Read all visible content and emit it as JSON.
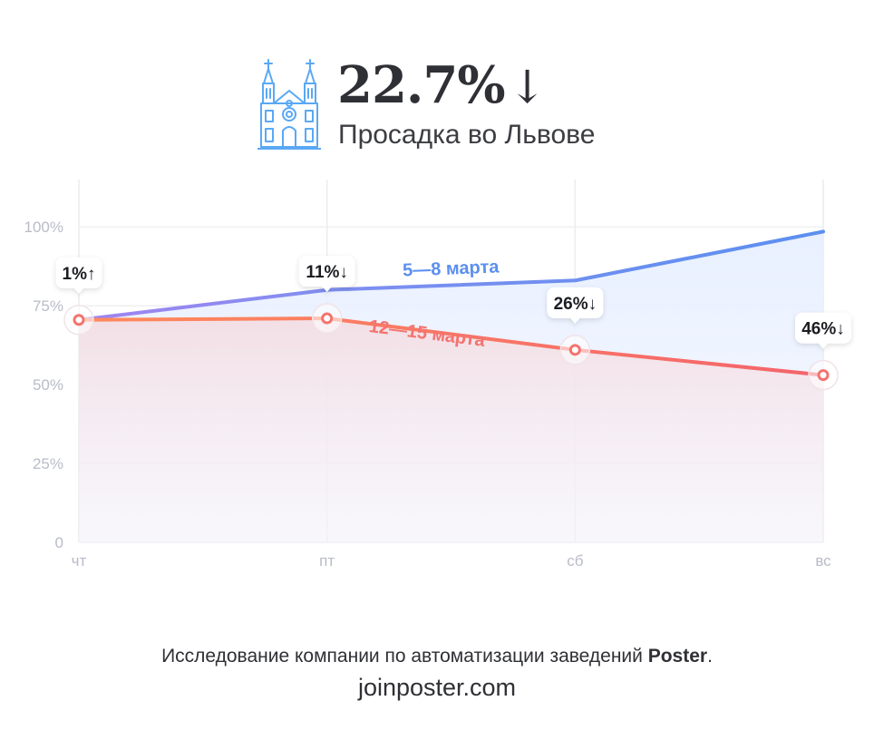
{
  "header": {
    "headline_value": "22.7%",
    "headline_arrow": "↓",
    "subtitle": "Просадка во Львове"
  },
  "icons": {
    "church": "church-icon"
  },
  "colors": {
    "blue": "#5b8fef",
    "purple": "#9b7cf0",
    "red": "#f4736f",
    "orange": "#ff8a5c",
    "grid": "#ececf0",
    "axis_text": "#b9bcc8"
  },
  "chart_data": {
    "type": "line",
    "categories": [
      "чт",
      "пт",
      "сб",
      "вс"
    ],
    "ylim": [
      0,
      115
    ],
    "yticks": [
      {
        "value": 0,
        "label": "0"
      },
      {
        "value": 25,
        "label": "25%"
      },
      {
        "value": 50,
        "label": "50%"
      },
      {
        "value": 75,
        "label": "75%"
      },
      {
        "value": 100,
        "label": "100%"
      }
    ],
    "grid": true,
    "series": [
      {
        "name": "5—8 марта",
        "values": [
          70.5,
          80,
          83,
          98.5
        ]
      },
      {
        "name": "12—15 марта",
        "values": [
          70.5,
          71,
          61,
          53
        ]
      }
    ],
    "annotations": [
      "1%↑",
      "11%↓",
      "26%↓",
      "46%↓"
    ]
  },
  "footer": {
    "line1_text": "Исследование компании по автоматизации заведений ",
    "line1_brand": "Poster",
    "line1_end": ".",
    "line2": "joinposter.com"
  }
}
